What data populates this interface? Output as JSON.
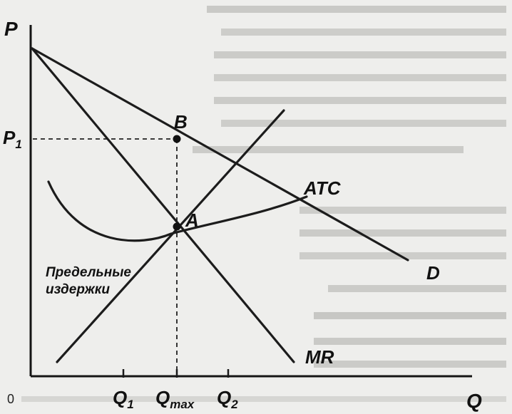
{
  "axes": {
    "y_label": "P",
    "x_label": "Q",
    "origin_label": "0"
  },
  "price_level": {
    "base": "P",
    "sub": "1"
  },
  "quantities": [
    {
      "base": "Q",
      "sub": "1"
    },
    {
      "base": "Q",
      "sub": "max"
    },
    {
      "base": "Q",
      "sub": "2"
    }
  ],
  "curves": {
    "demand": "D",
    "marginal_revenue": "MR",
    "average_total_cost": "ATC",
    "marginal_cost_line1": "Предельные",
    "marginal_cost_line2": "издержки"
  },
  "points": {
    "b": "B",
    "a": "A"
  },
  "colors": {
    "background": "#eeeeec",
    "ink": "#151515",
    "faded_text": "#b9b9b6"
  }
}
